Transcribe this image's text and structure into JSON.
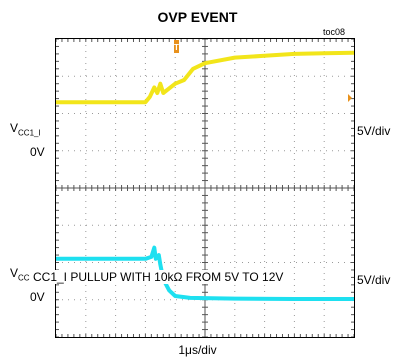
{
  "figure_id": "toc08",
  "chart_data": {
    "type": "line",
    "title": "OVP EVENT",
    "xlabel": "1μs/div",
    "time_divisions": 10,
    "vertical_divisions": 8,
    "trigger_marker": "T",
    "channels": [
      {
        "label_main": "V",
        "label_sub": "CC1_I",
        "ground_label": "0V",
        "scale": "5V/div",
        "color": "#f2e51a",
        "ground_div": 4.0,
        "points_div": [
          [
            0,
            6.3
          ],
          [
            3.0,
            6.3
          ],
          [
            3.15,
            6.45
          ],
          [
            3.3,
            6.7
          ],
          [
            3.4,
            6.55
          ],
          [
            3.5,
            6.8
          ],
          [
            3.6,
            6.55
          ],
          [
            4.0,
            6.8
          ],
          [
            4.3,
            6.9
          ],
          [
            4.6,
            7.2
          ],
          [
            5.0,
            7.35
          ],
          [
            6.0,
            7.5
          ],
          [
            7.0,
            7.55
          ],
          [
            8.0,
            7.6
          ],
          [
            9.0,
            7.62
          ],
          [
            10,
            7.63
          ]
        ]
      },
      {
        "label_main": "V",
        "label_sub": "CC1_O",
        "ground_label": "0V",
        "scale": "5V/div",
        "color": "#1ee0f0",
        "ground_div": 1.0,
        "points_div": [
          [
            0,
            2.1
          ],
          [
            3.0,
            2.1
          ],
          [
            3.2,
            2.15
          ],
          [
            3.3,
            2.4
          ],
          [
            3.35,
            2.1
          ],
          [
            3.45,
            2.2
          ],
          [
            3.5,
            1.95
          ],
          [
            3.6,
            1.55
          ],
          [
            3.8,
            1.25
          ],
          [
            4.0,
            1.1
          ],
          [
            4.5,
            1.05
          ],
          [
            6.0,
            1.03
          ],
          [
            8.0,
            1.02
          ],
          [
            10,
            1.02
          ]
        ]
      }
    ],
    "annotation": "CC1_I PULLUP WITH 10kΩ FROM 5V TO 12V"
  }
}
